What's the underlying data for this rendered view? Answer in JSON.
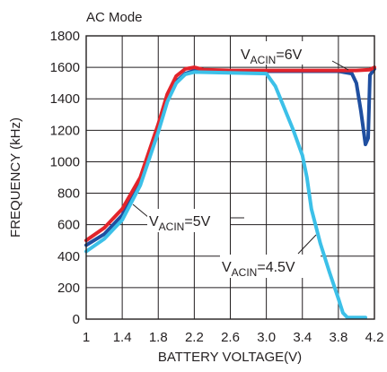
{
  "chart_data": {
    "type": "line",
    "title": "AC Mode",
    "xlabel": "BATTERY VOLTAGE(V)",
    "ylabel": "FREQUENCY (kHz)",
    "xlim": [
      1,
      4.2
    ],
    "ylim": [
      0,
      1800
    ],
    "grid": true,
    "x_ticks": [
      "1",
      "1.4",
      "1.8",
      "2.2",
      "2.6",
      "3.0",
      "3.4",
      "3.8",
      "4.2"
    ],
    "y_ticks": [
      "0",
      "200",
      "400",
      "600",
      "800",
      "1000",
      "1200",
      "1400",
      "1600",
      "1800"
    ],
    "annotations": [
      {
        "prefix": "V",
        "sub": "ACIN",
        "suffix": "=6V"
      },
      {
        "prefix": "V",
        "sub": "ACIN",
        "suffix": "=5V"
      },
      {
        "prefix": "V",
        "sub": "ACIN",
        "suffix": "=4.5V"
      }
    ],
    "series": [
      {
        "color": "#1f4fa0",
        "points": [
          [
            1.0,
            470
          ],
          [
            1.2,
            540
          ],
          [
            1.4,
            660
          ],
          [
            1.6,
            880
          ],
          [
            1.8,
            1210
          ],
          [
            1.9,
            1390
          ],
          [
            2.0,
            1510
          ],
          [
            2.1,
            1560
          ],
          [
            2.2,
            1580
          ],
          [
            2.4,
            1575
          ],
          [
            2.6,
            1575
          ],
          [
            2.8,
            1575
          ],
          [
            3.0,
            1575
          ],
          [
            3.4,
            1575
          ],
          [
            3.8,
            1575
          ],
          [
            3.95,
            1560
          ],
          [
            4.0,
            1500
          ],
          [
            4.05,
            1320
          ],
          [
            4.1,
            1110
          ],
          [
            4.13,
            1150
          ],
          [
            4.15,
            1550
          ],
          [
            4.2,
            1590
          ]
        ]
      },
      {
        "color": "#e2242b",
        "points": [
          [
            1.0,
            500
          ],
          [
            1.2,
            580
          ],
          [
            1.4,
            700
          ],
          [
            1.6,
            900
          ],
          [
            1.8,
            1240
          ],
          [
            1.9,
            1430
          ],
          [
            2.0,
            1545
          ],
          [
            2.1,
            1590
          ],
          [
            2.2,
            1600
          ],
          [
            2.3,
            1585
          ],
          [
            2.6,
            1580
          ],
          [
            3.0,
            1580
          ],
          [
            3.4,
            1580
          ],
          [
            3.8,
            1580
          ],
          [
            4.0,
            1580
          ],
          [
            4.15,
            1585
          ],
          [
            4.2,
            1600
          ]
        ]
      },
      {
        "color": "#3cc0e8",
        "points": [
          [
            1.0,
            430
          ],
          [
            1.2,
            510
          ],
          [
            1.4,
            630
          ],
          [
            1.6,
            850
          ],
          [
            1.8,
            1190
          ],
          [
            1.9,
            1380
          ],
          [
            2.0,
            1500
          ],
          [
            2.1,
            1555
          ],
          [
            2.2,
            1570
          ],
          [
            2.6,
            1565
          ],
          [
            3.0,
            1560
          ],
          [
            3.1,
            1480
          ],
          [
            3.2,
            1340
          ],
          [
            3.3,
            1200
          ],
          [
            3.4,
            1040
          ],
          [
            3.45,
            900
          ],
          [
            3.5,
            700
          ],
          [
            3.6,
            480
          ],
          [
            3.7,
            300
          ],
          [
            3.8,
            130
          ],
          [
            3.85,
            40
          ],
          [
            3.9,
            10
          ],
          [
            4.1,
            10
          ]
        ]
      }
    ]
  }
}
